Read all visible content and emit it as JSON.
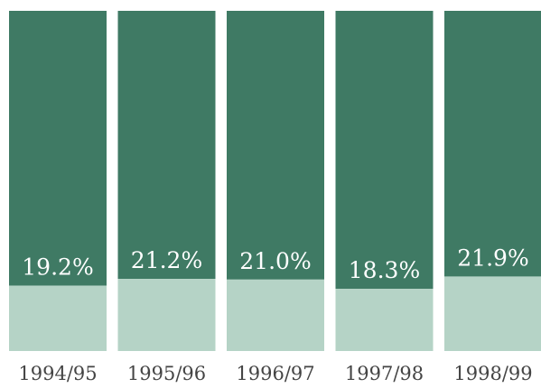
{
  "chart_data": {
    "type": "bar",
    "stacked": true,
    "categories": [
      "1994/95",
      "1995/96",
      "1996/97",
      "1997/98",
      "1998/99"
    ],
    "values": [
      19.2,
      21.2,
      21.0,
      18.3,
      21.9
    ],
    "value_labels": [
      "19.2%",
      "21.2%",
      "21.0%",
      "18.3%",
      "21.9%"
    ],
    "total": 100,
    "unit": "%",
    "ylim": [
      0,
      100
    ],
    "grid": false,
    "legend": "none",
    "title": "",
    "xlabel": "",
    "ylabel": "",
    "colors": {
      "share": "#b5d3c6",
      "remainder": "#3f7a64",
      "label_text": "#ffffff",
      "tick_text": "#444444"
    }
  }
}
